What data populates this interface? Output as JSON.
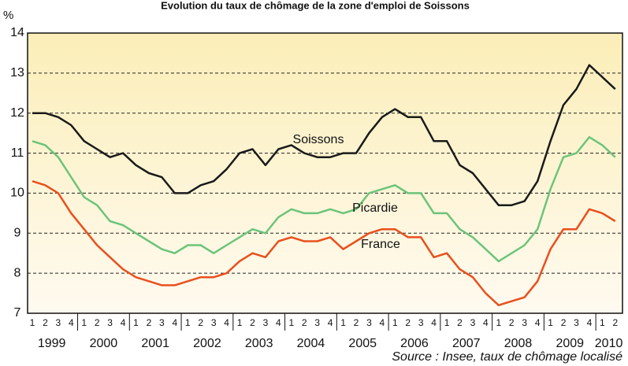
{
  "chart_data": {
    "type": "line",
    "title": "Evolution du taux de chômage de la zone d'emploi de Soissons",
    "y_label": "%",
    "source": "Source : Insee,  taux de chômage localisé",
    "categories": [
      "1",
      "2",
      "3",
      "4",
      "1",
      "2",
      "3",
      "4",
      "1",
      "2",
      "3",
      "4",
      "1",
      "2",
      "3",
      "4",
      "1",
      "2",
      "3",
      "4",
      "1",
      "2",
      "3",
      "4",
      "1",
      "2",
      "3",
      "4",
      "1",
      "2",
      "3",
      "4",
      "1",
      "2",
      "3",
      "4",
      "1",
      "2",
      "3",
      "4",
      "1",
      "2",
      "3",
      "4",
      "1",
      "2"
    ],
    "years": [
      "1999",
      "2000",
      "2001",
      "2002",
      "2003",
      "2004",
      "2005",
      "2006",
      "2007",
      "2008",
      "2009",
      "2010"
    ],
    "ylim": [
      7,
      14
    ],
    "yticks": [
      7,
      8,
      9,
      10,
      11,
      12,
      13,
      14
    ],
    "grid": true,
    "series": [
      {
        "name": "Soissons",
        "color": "#1a1a1a",
        "values": [
          12.0,
          12.0,
          11.9,
          11.7,
          11.3,
          11.1,
          10.9,
          11.0,
          10.7,
          10.5,
          10.4,
          10.0,
          10.0,
          10.2,
          10.3,
          10.6,
          11.0,
          11.1,
          10.7,
          11.1,
          11.2,
          11.0,
          10.9,
          10.9,
          11.0,
          11.0,
          11.5,
          11.9,
          12.1,
          11.9,
          11.9,
          11.3,
          11.3,
          10.7,
          10.5,
          10.1,
          9.7,
          9.7,
          9.8,
          10.3,
          11.3,
          12.2,
          12.6,
          13.2,
          12.9,
          12.6
        ]
      },
      {
        "name": "Picardie",
        "color": "#6cc47a",
        "values": [
          11.3,
          11.2,
          10.9,
          10.4,
          9.9,
          9.7,
          9.3,
          9.2,
          9.0,
          8.8,
          8.6,
          8.5,
          8.7,
          8.7,
          8.5,
          8.7,
          8.9,
          9.1,
          9.0,
          9.4,
          9.6,
          9.5,
          9.5,
          9.6,
          9.5,
          9.6,
          10.0,
          10.1,
          10.2,
          10.0,
          10.0,
          9.5,
          9.5,
          9.1,
          8.9,
          8.6,
          8.3,
          8.5,
          8.7,
          9.1,
          10.1,
          10.9,
          11.0,
          11.4,
          11.2,
          10.9
        ]
      },
      {
        "name": "France",
        "color": "#e8501e",
        "values": [
          10.3,
          10.2,
          10.0,
          9.5,
          9.1,
          8.7,
          8.4,
          8.1,
          7.9,
          7.8,
          7.7,
          7.7,
          7.8,
          7.9,
          7.9,
          8.0,
          8.3,
          8.5,
          8.4,
          8.8,
          8.9,
          8.8,
          8.8,
          8.9,
          8.6,
          8.8,
          9.0,
          9.1,
          9.1,
          8.9,
          8.9,
          8.4,
          8.5,
          8.1,
          7.9,
          7.5,
          7.2,
          7.3,
          7.4,
          7.8,
          8.6,
          9.1,
          9.1,
          9.6,
          9.5,
          9.3
        ]
      }
    ]
  }
}
